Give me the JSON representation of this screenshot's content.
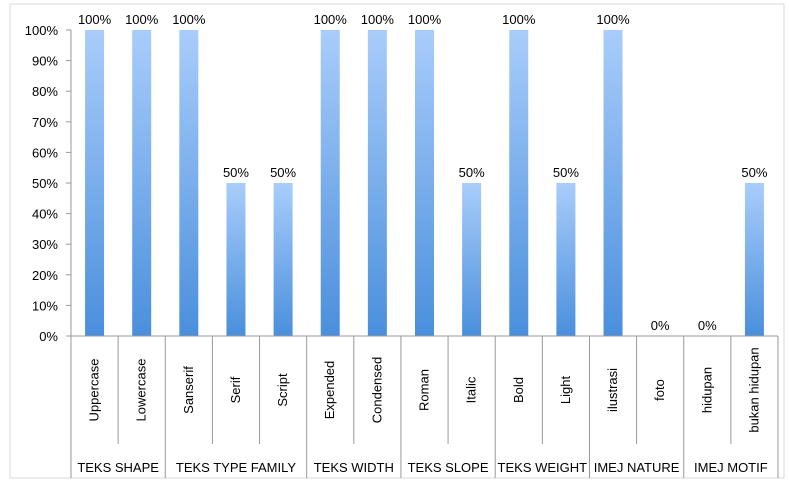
{
  "chart_data": {
    "type": "bar",
    "categories": [
      "Uppercase",
      "Lowercase",
      "Sanserif",
      "Serif",
      "Script",
      "Expended",
      "Condensed",
      "Roman",
      "Italic",
      "Bold",
      "Light",
      "ilustrasi",
      "foto",
      "hidupan",
      "bukan hidupan"
    ],
    "values": [
      100,
      100,
      100,
      50,
      50,
      100,
      100,
      100,
      50,
      100,
      50,
      100,
      0,
      0,
      50
    ],
    "data_labels": [
      "100%",
      "100%",
      "100%",
      "50%",
      "50%",
      "100%",
      "100%",
      "100%",
      "50%",
      "100%",
      "50%",
      "100%",
      "0%",
      "0%",
      "50%"
    ],
    "groups": [
      {
        "label": "TEKS SHAPE",
        "count": 2
      },
      {
        "label": "TEKS TYPE FAMILY",
        "count": 3
      },
      {
        "label": "TEKS WIDTH",
        "count": 2
      },
      {
        "label": "TEKS SLOPE",
        "count": 2
      },
      {
        "label": "TEKS WEIGHT",
        "count": 2
      },
      {
        "label": "IMEJ NATURE",
        "count": 2
      },
      {
        "label": "IMEJ MOTIF",
        "count": 2
      }
    ],
    "y_ticks": [
      "0%",
      "10%",
      "20%",
      "30%",
      "40%",
      "50%",
      "60%",
      "70%",
      "80%",
      "90%",
      "100%"
    ],
    "ylim": [
      0,
      100
    ],
    "title": "",
    "xlabel": "",
    "ylabel": "",
    "grid": false,
    "legend": "none",
    "colors": {
      "bar_top": "#a9cdfb",
      "bar_bottom": "#4a8fdc",
      "axis": "#999999"
    }
  }
}
